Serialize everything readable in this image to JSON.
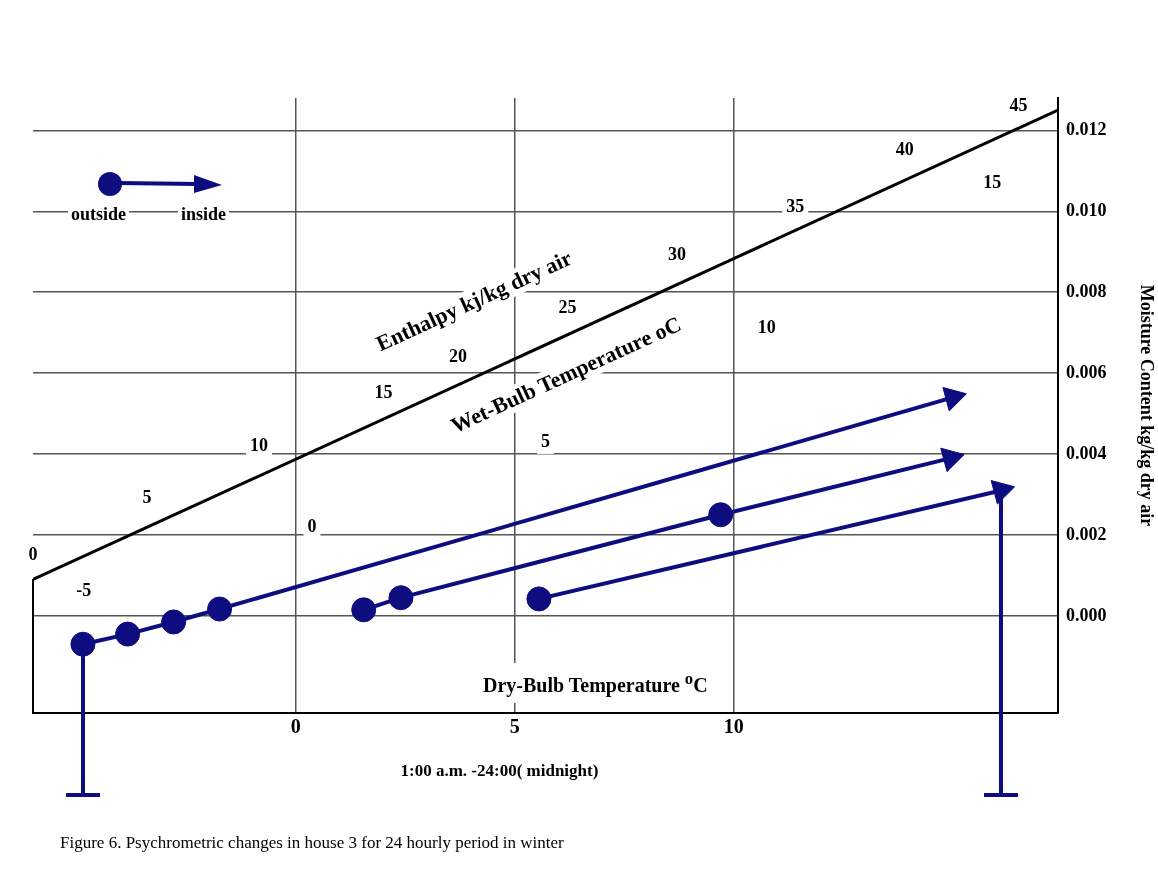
{
  "chart_data": {
    "type": "scatter",
    "xlabel": "Dry-Bulb Temperature $^{o}$C",
    "ylabel": "Moisture Content kg/kg dry air",
    "xlim": [
      -6,
      17.4
    ],
    "xticks": [
      0,
      5,
      10
    ],
    "ylim": [
      -0.0024,
      0.0128
    ],
    "yticks": [
      {
        "value": 0,
        "label": "0.000"
      },
      {
        "value": 0.002,
        "label": "0.002"
      },
      {
        "value": 0.004,
        "label": "0.004"
      },
      {
        "value": 0.006,
        "label": "0.006"
      },
      {
        "value": 0.008,
        "label": "0.008"
      },
      {
        "value": 0.01,
        "label": "0.010"
      },
      {
        "value": 0.012,
        "label": "0.012"
      }
    ],
    "grid": true,
    "legend": "top left",
    "series": [
      {
        "type": "line",
        "color": "#000000",
        "marker": "none",
        "x": [
          -6,
          17.4
        ],
        "values": [
          0.0009,
          0.0125
        ]
      },
      {
        "type": "line",
        "color": "#0d0d80",
        "marker": "none",
        "x": [
          -4.86,
          -3.84,
          -2.79,
          -1.74,
          15.0
        ],
        "values": [
          -0.0007,
          -0.00045,
          -0.00015,
          0.00017,
          0.0054
        ]
      },
      {
        "type": "line",
        "color": "#0d0d80",
        "marker": "none",
        "x": [
          1.55,
          2.4,
          9.7,
          14.95
        ],
        "values": [
          0.00015,
          0.00045,
          0.0025,
          0.0039
        ]
      },
      {
        "type": "line",
        "color": "#0d0d80",
        "marker": "none",
        "x": [
          5.55,
          16.1
        ],
        "values": [
          0.00042,
          0.0031
        ]
      },
      {
        "type": "scatter",
        "name": "outside",
        "color": "#0d0d80",
        "marker": "circle",
        "x": [
          -4.86,
          -3.84,
          -2.79,
          -1.74,
          1.55,
          2.4,
          9.7,
          5.55
        ],
        "values": [
          -0.0007,
          -0.00045,
          -0.00015,
          0.00017,
          0.00015,
          0.00045,
          0.0025,
          0.00042
        ]
      },
      {
        "type": "scatter",
        "name": "inside",
        "color": "#0d0d80",
        "marker": "triangle",
        "x": [
          15.0,
          14.95,
          16.1
        ],
        "values": [
          0.0054,
          0.0039,
          0.0031
        ]
      }
    ],
    "annotations": [
      {
        "text": "0",
        "x": -6,
        "y": 0.0015
      },
      {
        "text": "5",
        "x": -3.4,
        "y": 0.0029
      },
      {
        "text": "10",
        "x": -0.84,
        "y": 0.0042
      },
      {
        "text": "15",
        "x": 2.0,
        "y": 0.0055
      },
      {
        "text": "20",
        "x": 3.7,
        "y": 0.0064
      },
      {
        "text": "25",
        "x": 6.2,
        "y": 0.0076
      },
      {
        "text": "30",
        "x": 8.7,
        "y": 0.0089
      },
      {
        "text": "35",
        "x": 11.4,
        "y": 0.0101
      },
      {
        "text": "40",
        "x": 13.9,
        "y": 0.0115
      },
      {
        "text": "45",
        "x": 16.5,
        "y": 0.0126
      },
      {
        "text": "-5",
        "x": -4.84,
        "y": 0.0006
      },
      {
        "text": "0",
        "x": 0.37,
        "y": 0.0022
      },
      {
        "text": "5",
        "x": 5.7,
        "y": 0.0043
      },
      {
        "text": "10",
        "x": 10.75,
        "y": 0.0071
      },
      {
        "text": "15",
        "x": 15.9,
        "y": 0.0107
      },
      "Enthalpy kj/kg dry air",
      "Wet-Bulb Temperature oC",
      "1:00 a.m. -24:00( midnight)",
      "Figure 6. Psychrometric changes in house 3 for 24 hourly period in winter"
    ]
  }
}
